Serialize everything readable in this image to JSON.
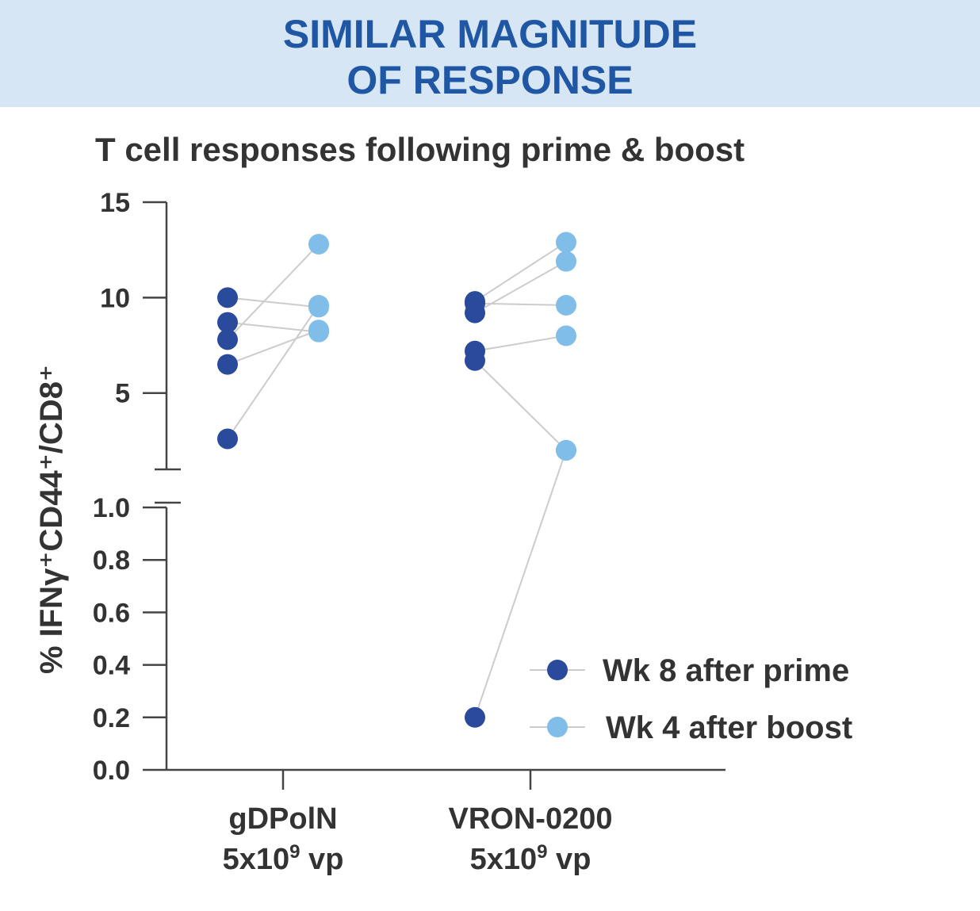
{
  "banner": {
    "line1": "SIMILAR MAGNITUDE",
    "line2": "OF RESPONSE"
  },
  "chart_data": {
    "type": "scatter",
    "title": "T cell responses following prime & boost",
    "ylabel": "% IFNγ⁺CD44⁺/CD8⁺",
    "xlabel": "",
    "y_axis_broken": true,
    "y_lower": {
      "range": [
        0.0,
        1.0
      ],
      "ticks": [
        0.0,
        0.2,
        0.4,
        0.6,
        0.8,
        1.0
      ],
      "tick_labels": [
        "0.0",
        "0.2",
        "0.4",
        "0.6",
        "0.8",
        "1.0"
      ]
    },
    "y_upper": {
      "range": [
        1.0,
        15
      ],
      "ticks": [
        5,
        10,
        15
      ],
      "tick_labels": [
        "5",
        "10",
        "15"
      ]
    },
    "categories": [
      {
        "line1": "gDPolN",
        "line2_prefix": "5x10",
        "line2_sup": "9",
        "line2_suffix": " vp"
      },
      {
        "line1": "VRON-0200",
        "line2_prefix": "5x10",
        "line2_sup": "9",
        "line2_suffix": " vp"
      }
    ],
    "series": [
      {
        "name": "Wk 8 after prime",
        "color": "#2a4a9c"
      },
      {
        "name": "Wk 4 after boost",
        "color": "#80bde8"
      }
    ],
    "connector_color": "#cccccc",
    "legend_position": "bottom-right",
    "grid": false,
    "pairs": [
      {
        "group": 0,
        "prime": 10.0,
        "boost": 9.5
      },
      {
        "group": 0,
        "prime": 8.7,
        "boost": 8.2
      },
      {
        "group": 0,
        "prime": 7.8,
        "boost": 12.8
      },
      {
        "group": 0,
        "prime": 6.5,
        "boost": 8.3
      },
      {
        "group": 0,
        "prime": 2.6,
        "boost": 9.6
      },
      {
        "group": 1,
        "prime": 9.8,
        "boost": 12.9
      },
      {
        "group": 1,
        "prime": 9.7,
        "boost": 9.6
      },
      {
        "group": 1,
        "prime": 9.2,
        "boost": 11.9
      },
      {
        "group": 1,
        "prime": 7.2,
        "boost": 8.0
      },
      {
        "group": 1,
        "prime": 6.7,
        "boost": 2.0
      },
      {
        "group": 1,
        "prime": 0.2,
        "boost": 2.0
      }
    ]
  }
}
